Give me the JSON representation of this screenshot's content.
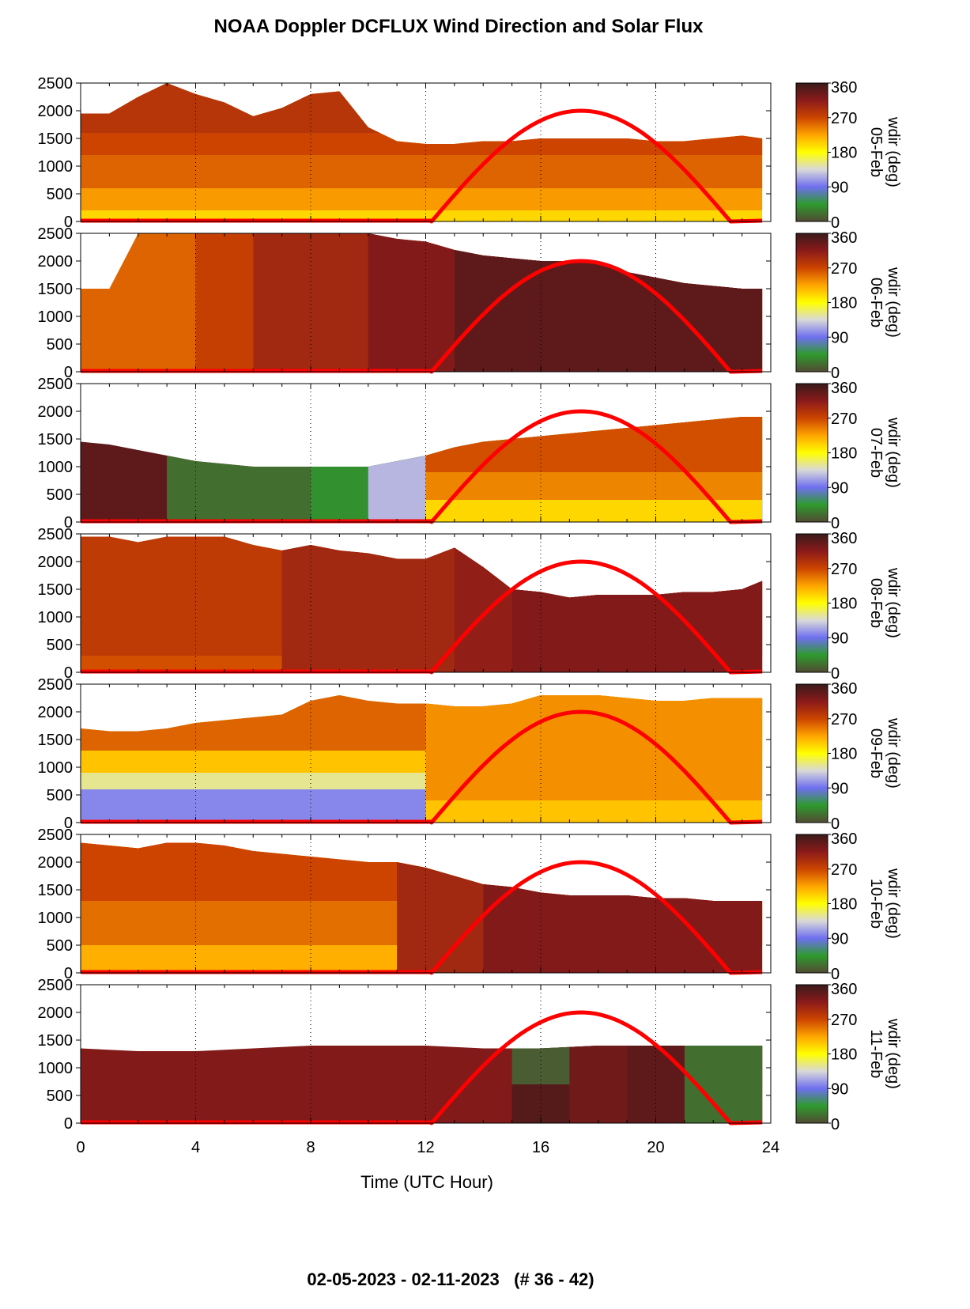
{
  "title": "NOAA Doppler DCFLUX Wind Direction and Solar Flux",
  "date_range": "02-05-2023 - 02-11-2023   (# 36 - 42)",
  "chart_data": {
    "type": "heatmap",
    "xlabel": "Time (UTC Hour)",
    "x_ticks": [
      "0",
      "4",
      "8",
      "12",
      "16",
      "20",
      "24"
    ],
    "xlim": [
      0,
      24
    ],
    "ylim": [
      0,
      2500
    ],
    "y_ticks": [
      "0",
      "500",
      "1000",
      "1500",
      "2000",
      "2500"
    ],
    "vertical_grid_hours": [
      4,
      8,
      12,
      16,
      20
    ],
    "colorbar": {
      "label_suffix": "wdir (deg)",
      "range": [
        0,
        360
      ],
      "ticks": [
        "0",
        "90",
        "180",
        "270",
        "360"
      ],
      "colors": [
        "#524a32",
        "#2e9a2e",
        "#6f6ff0",
        "#d9d9d9",
        "#ffff00",
        "#ffa500",
        "#cc4400",
        "#8b1a1a",
        "#3a1a1a"
      ]
    },
    "solar_flux": {
      "color": "#ff0000",
      "rise_hour": 12.2,
      "set_hour": 22.6,
      "peak_hour": 17.4,
      "peak_height": 2000
    },
    "panels": [
      {
        "date": "05-Feb",
        "top_profile": [
          [
            0,
            1950
          ],
          [
            1,
            1950
          ],
          [
            2,
            2250
          ],
          [
            3,
            2500
          ],
          [
            4,
            2300
          ],
          [
            5,
            2150
          ],
          [
            6,
            1900
          ],
          [
            7,
            2050
          ],
          [
            8,
            2300
          ],
          [
            9,
            2350
          ],
          [
            10,
            1700
          ],
          [
            11,
            1450
          ],
          [
            12,
            1400
          ],
          [
            13,
            1400
          ],
          [
            14,
            1450
          ],
          [
            15,
            1450
          ],
          [
            16,
            1500
          ],
          [
            17,
            1500
          ],
          [
            18,
            1500
          ],
          [
            19,
            1500
          ],
          [
            20,
            1450
          ],
          [
            21,
            1450
          ],
          [
            22,
            1500
          ],
          [
            23,
            1550
          ],
          [
            23.7,
            1500
          ]
        ],
        "layers": [
          [
            0,
            0,
            200
          ],
          [
            0,
            200,
            230
          ],
          [
            0,
            600,
            255
          ],
          [
            0,
            1200,
            270
          ],
          [
            0,
            1600,
            285
          ]
        ]
      },
      {
        "date": "06-Feb",
        "top_profile": [
          [
            0,
            1500
          ],
          [
            1,
            1500
          ],
          [
            2,
            2500
          ],
          [
            3,
            2500
          ],
          [
            4,
            2500
          ],
          [
            5,
            2500
          ],
          [
            6,
            2500
          ],
          [
            7,
            2500
          ],
          [
            8,
            2500
          ],
          [
            9,
            2500
          ],
          [
            10,
            2500
          ],
          [
            11,
            2400
          ],
          [
            12,
            2350
          ],
          [
            13,
            2200
          ],
          [
            14,
            2100
          ],
          [
            15,
            2050
          ],
          [
            16,
            2000
          ],
          [
            17,
            2000
          ],
          [
            18,
            2000
          ],
          [
            19,
            1800
          ],
          [
            20,
            1700
          ],
          [
            21,
            1600
          ],
          [
            22,
            1550
          ],
          [
            23,
            1500
          ],
          [
            23.7,
            1500
          ]
        ],
        "layers": [
          [
            0,
            0,
            255
          ],
          [
            4,
            0,
            275
          ],
          [
            6,
            0,
            300
          ],
          [
            10,
            0,
            320
          ],
          [
            13,
            0,
            340
          ]
        ]
      },
      {
        "date": "07-Feb",
        "top_profile": [
          [
            0,
            1450
          ],
          [
            1,
            1400
          ],
          [
            2,
            1300
          ],
          [
            3,
            1200
          ],
          [
            4,
            1100
          ],
          [
            5,
            1050
          ],
          [
            6,
            1000
          ],
          [
            7,
            1000
          ],
          [
            8,
            1000
          ],
          [
            9,
            1000
          ],
          [
            10,
            1000
          ],
          [
            11,
            1100
          ],
          [
            12,
            1200
          ],
          [
            13,
            1350
          ],
          [
            14,
            1450
          ],
          [
            15,
            1500
          ],
          [
            16,
            1550
          ],
          [
            17,
            1600
          ],
          [
            18,
            1650
          ],
          [
            19,
            1700
          ],
          [
            20,
            1750
          ],
          [
            21,
            1800
          ],
          [
            22,
            1850
          ],
          [
            23,
            1900
          ],
          [
            23.7,
            1900
          ]
        ],
        "layers": [
          [
            0,
            0,
            340
          ],
          [
            3,
            0,
            20
          ],
          [
            8,
            0,
            40
          ],
          [
            10,
            0,
            120
          ],
          [
            12,
            0,
            200
          ],
          [
            12,
            400,
            240
          ],
          [
            12,
            900,
            265
          ]
        ]
      },
      {
        "date": "08-Feb",
        "top_profile": [
          [
            0,
            2450
          ],
          [
            1,
            2450
          ],
          [
            2,
            2350
          ],
          [
            3,
            2450
          ],
          [
            4,
            2450
          ],
          [
            5,
            2450
          ],
          [
            6,
            2300
          ],
          [
            7,
            2200
          ],
          [
            8,
            2300
          ],
          [
            9,
            2200
          ],
          [
            10,
            2150
          ],
          [
            11,
            2050
          ],
          [
            12,
            2050
          ],
          [
            13,
            2250
          ],
          [
            14,
            1900
          ],
          [
            15,
            1500
          ],
          [
            16,
            1450
          ],
          [
            17,
            1350
          ],
          [
            18,
            1400
          ],
          [
            19,
            1400
          ],
          [
            20,
            1400
          ],
          [
            21,
            1450
          ],
          [
            22,
            1450
          ],
          [
            23,
            1500
          ],
          [
            23.7,
            1650
          ]
        ],
        "layers": [
          [
            0,
            0,
            265
          ],
          [
            0,
            300,
            280
          ],
          [
            7,
            0,
            300
          ],
          [
            13,
            0,
            310
          ],
          [
            15,
            0,
            320
          ]
        ]
      },
      {
        "date": "09-Feb",
        "top_profile": [
          [
            0,
            1700
          ],
          [
            1,
            1650
          ],
          [
            2,
            1650
          ],
          [
            3,
            1700
          ],
          [
            4,
            1800
          ],
          [
            5,
            1850
          ],
          [
            6,
            1900
          ],
          [
            7,
            1950
          ],
          [
            8,
            2200
          ],
          [
            9,
            2300
          ],
          [
            10,
            2200
          ],
          [
            11,
            2150
          ],
          [
            12,
            2150
          ],
          [
            13,
            2100
          ],
          [
            14,
            2100
          ],
          [
            15,
            2150
          ],
          [
            16,
            2300
          ],
          [
            17,
            2300
          ],
          [
            18,
            2300
          ],
          [
            19,
            2250
          ],
          [
            20,
            2200
          ],
          [
            21,
            2200
          ],
          [
            22,
            2250
          ],
          [
            23,
            2250
          ],
          [
            23.7,
            2250
          ]
        ],
        "layers": [
          [
            0,
            0,
            100
          ],
          [
            0,
            600,
            150
          ],
          [
            0,
            900,
            210
          ],
          [
            0,
            1300,
            255
          ],
          [
            12,
            0,
            210
          ],
          [
            12,
            400,
            235
          ]
        ]
      },
      {
        "date": "10-Feb",
        "top_profile": [
          [
            0,
            2350
          ],
          [
            1,
            2300
          ],
          [
            2,
            2250
          ],
          [
            3,
            2350
          ],
          [
            4,
            2350
          ],
          [
            5,
            2300
          ],
          [
            6,
            2200
          ],
          [
            7,
            2150
          ],
          [
            8,
            2100
          ],
          [
            9,
            2050
          ],
          [
            10,
            2000
          ],
          [
            11,
            2000
          ],
          [
            12,
            1900
          ],
          [
            13,
            1750
          ],
          [
            14,
            1600
          ],
          [
            15,
            1550
          ],
          [
            16,
            1450
          ],
          [
            17,
            1400
          ],
          [
            18,
            1400
          ],
          [
            19,
            1400
          ],
          [
            20,
            1350
          ],
          [
            21,
            1350
          ],
          [
            22,
            1300
          ],
          [
            23,
            1300
          ],
          [
            23.7,
            1300
          ]
        ],
        "layers": [
          [
            0,
            0,
            220
          ],
          [
            0,
            500,
            250
          ],
          [
            0,
            1300,
            270
          ],
          [
            11,
            0,
            300
          ],
          [
            14,
            0,
            320
          ]
        ]
      },
      {
        "date": "11-Feb",
        "top_profile": [
          [
            0,
            1350
          ],
          [
            2,
            1300
          ],
          [
            4,
            1300
          ],
          [
            6,
            1350
          ],
          [
            8,
            1400
          ],
          [
            10,
            1400
          ],
          [
            12,
            1400
          ],
          [
            14,
            1350
          ],
          [
            16,
            1350
          ],
          [
            18,
            1400
          ],
          [
            20,
            1400
          ],
          [
            22,
            1400
          ],
          [
            23.7,
            1400
          ]
        ],
        "layers": [
          [
            0,
            0,
            320
          ],
          [
            15,
            0,
            345
          ],
          [
            15,
            700,
            10
          ],
          [
            17,
            0,
            330
          ],
          [
            19,
            0,
            340
          ],
          [
            21,
            0,
            20
          ]
        ]
      }
    ]
  }
}
